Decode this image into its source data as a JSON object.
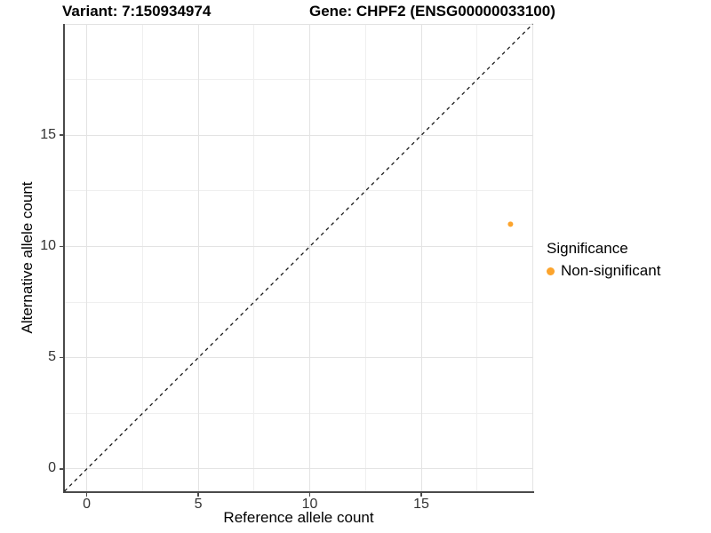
{
  "titles": {
    "variant": "Variant: 7:150934974",
    "gene": "Gene: CHPF2 (ENSG00000033100)"
  },
  "colors": {
    "point": "#FCA42D",
    "grid_major": "#E3E3E3",
    "grid_minor": "#EFEFEF",
    "axis": "#4A4A4A",
    "tick_label": "#333333",
    "reference_line": "#1A1A1A",
    "background": "#FFFFFF"
  },
  "chart_data": {
    "type": "scatter",
    "title_left": "Variant: 7:150934974",
    "title_right": "Gene: CHPF2 (ENSG00000033100)",
    "xlabel": "Reference allele count",
    "ylabel": "Alternative allele count",
    "xlim": [
      -1,
      20
    ],
    "ylim": [
      -1,
      20
    ],
    "x_ticks": [
      0,
      5,
      10,
      15
    ],
    "y_ticks": [
      0,
      5,
      10,
      15
    ],
    "x_minor_gridlines": [
      2.5,
      7.5,
      12.5,
      17.5
    ],
    "y_minor_gridlines": [
      2.5,
      7.5,
      12.5,
      17.5
    ],
    "x_major_gridlines": [
      0,
      5,
      10,
      15,
      20
    ],
    "y_major_gridlines": [
      0,
      5,
      10,
      15,
      20
    ],
    "grid": true,
    "points": [
      {
        "x": 19,
        "y": 11,
        "series": "Non-significant",
        "color": "#FCA42D",
        "radius": 3
      }
    ],
    "reference_line": {
      "kind": "identity",
      "style": "dashed",
      "dash": "4 4"
    },
    "legend": {
      "title": "Significance",
      "position": "right",
      "items": [
        {
          "label": "Non-significant",
          "color": "#FCA42D"
        }
      ]
    }
  }
}
